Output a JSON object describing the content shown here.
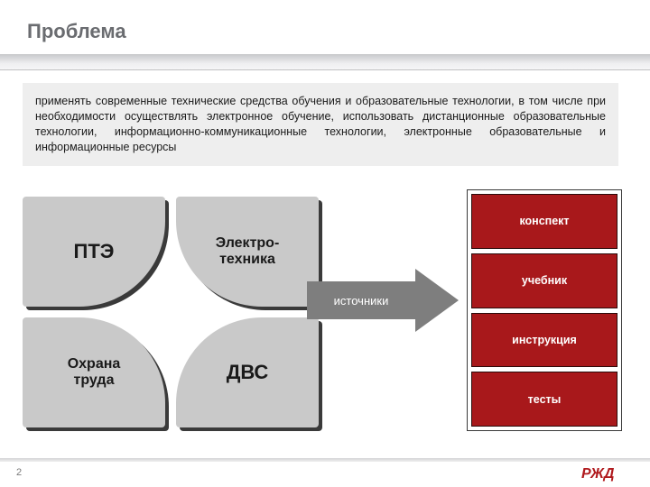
{
  "title": "Проблема",
  "paragraph": "применять современные технические средства обучения и образовательные технологии, в том числе при необходимости осуществлять электронное обучение, использовать дистанционные образовательные технологии, информационно-коммуникационные технологии, электронные образовательные и информационные ресурсы",
  "quad": {
    "tiles": [
      {
        "label": "ПТЭ",
        "pos": "tl",
        "font": "lg"
      },
      {
        "label": "Электро-\nтехника",
        "pos": "tr",
        "font": "md"
      },
      {
        "label": "Охрана\nтруда",
        "pos": "bl",
        "font": "md"
      },
      {
        "label": "ДВС",
        "pos": "br",
        "font": "lg"
      }
    ],
    "tile_bg": "#c9c9c9",
    "tile_shadow": "#3a3a3a",
    "tile_text": "#1a1a1a"
  },
  "arrow": {
    "label": "источники",
    "bg": "#7e7e7e",
    "text": "#ffffff"
  },
  "red_stack": {
    "border": "#3a3a3a",
    "item_bg": "#a8181b",
    "item_text": "#ffffff",
    "items": [
      "конспект",
      "учебник",
      "инструкция",
      "тесты"
    ]
  },
  "page_number": "2",
  "logo": {
    "text_color": "#b0191d"
  },
  "colors": {
    "title": "#6a6c70",
    "textbox_bg": "#eeeeee",
    "slide_bg": "#ffffff"
  }
}
